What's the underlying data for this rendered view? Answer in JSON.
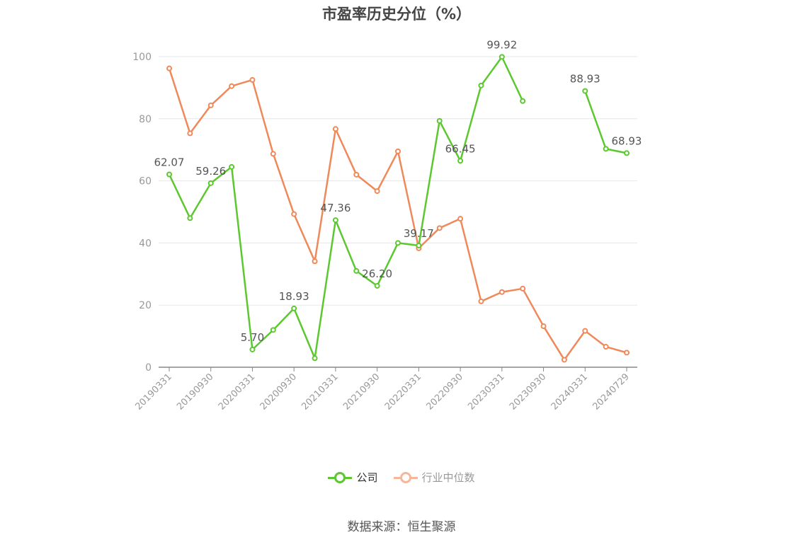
{
  "chart_data": {
    "type": "line",
    "title": "市盈率历史分位（%）",
    "x": [
      "20190331",
      "20190630",
      "20190930",
      "20191231",
      "20200331",
      "20200630",
      "20200930",
      "20201231",
      "20210331",
      "20210630",
      "20210930",
      "20211231",
      "20220331",
      "20220630",
      "20220930",
      "20221231",
      "20230331",
      "20230630",
      "20230930",
      "20231231",
      "20240331",
      "20240630",
      "20240729"
    ],
    "x_tick_labels": [
      "20190331",
      "20190930",
      "20200331",
      "20200930",
      "20210331",
      "20210930",
      "20220331",
      "20220930",
      "20230331",
      "20230930",
      "20240331",
      "20240729"
    ],
    "ylim": [
      0,
      100
    ],
    "y_ticks": [
      0,
      20,
      40,
      60,
      80,
      100
    ],
    "grid": true,
    "legend_position": "bottom",
    "series": [
      {
        "name": "公司",
        "color": "#5cc830",
        "values": [
          62.07,
          48.0,
          59.26,
          64.5,
          5.7,
          12.0,
          18.93,
          2.9,
          47.36,
          31.0,
          26.2,
          40.0,
          39.17,
          79.3,
          66.45,
          90.7,
          99.92,
          85.7,
          null,
          null,
          88.93,
          70.3,
          68.93
        ],
        "labels": [
          {
            "index": 0,
            "text": "62.07"
          },
          {
            "index": 2,
            "text": "59.26"
          },
          {
            "index": 4,
            "text": "5.70"
          },
          {
            "index": 6,
            "text": "18.93"
          },
          {
            "index": 8,
            "text": "47.36"
          },
          {
            "index": 10,
            "text": "26.20"
          },
          {
            "index": 12,
            "text": "39.17"
          },
          {
            "index": 14,
            "text": "66.45"
          },
          {
            "index": 16,
            "text": "99.92"
          },
          {
            "index": 20,
            "text": "88.93"
          },
          {
            "index": 22,
            "text": "68.93"
          }
        ]
      },
      {
        "name": "行业中位数",
        "color": "#f0895a",
        "values": [
          96.2,
          75.3,
          84.3,
          90.5,
          92.5,
          68.7,
          49.3,
          34.1,
          76.7,
          62.0,
          56.7,
          69.5,
          38.3,
          44.8,
          47.8,
          21.2,
          24.2,
          25.3,
          13.2,
          2.4,
          11.7,
          6.6,
          4.7
        ]
      }
    ]
  },
  "legend": {
    "company": "公司",
    "industry": "行业中位数",
    "industry_color": "#f5b79c"
  },
  "source": "数据来源：恒生聚源"
}
